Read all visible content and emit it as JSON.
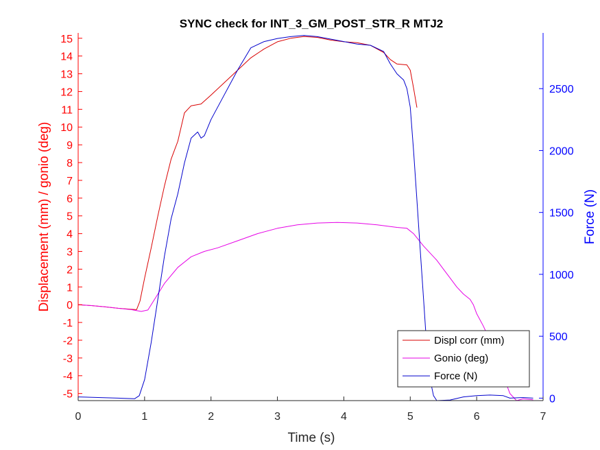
{
  "chart_data": {
    "type": "line",
    "title": "SYNC check for INT_3_GM_POST_STR_R MTJ2",
    "xlabel": "Time (s)",
    "ylabel_left": "Displacement (mm) / gonio (deg)",
    "ylabel_right": "Force (N)",
    "xlim": [
      0,
      7
    ],
    "ylim_left": [
      -5.4,
      15.3
    ],
    "ylim_right": [
      -20,
      2950
    ],
    "x_ticks": [
      0,
      1,
      2,
      3,
      4,
      5,
      6,
      7
    ],
    "y_left_ticks": [
      -5,
      -4,
      -3,
      -2,
      -1,
      0,
      1,
      2,
      3,
      4,
      5,
      6,
      7,
      8,
      9,
      10,
      11,
      12,
      13,
      14,
      15
    ],
    "y_right_ticks": [
      0,
      500,
      1000,
      1500,
      2000,
      2500
    ],
    "legend_position": "bottom-right",
    "colors": {
      "left_axis": "#ff0000",
      "right_axis": "#0000ff",
      "frame": "#262626"
    },
    "series": [
      {
        "name": "Displ corr (mm)",
        "axis": "left",
        "color": "#d90000",
        "points": [
          [
            0,
            0
          ],
          [
            0.2,
            -0.05
          ],
          [
            0.4,
            -0.12
          ],
          [
            0.6,
            -0.2
          ],
          [
            0.8,
            -0.26
          ],
          [
            0.88,
            -0.28
          ],
          [
            0.93,
            0.2
          ],
          [
            1.0,
            1.5
          ],
          [
            1.1,
            3.2
          ],
          [
            1.2,
            5.0
          ],
          [
            1.3,
            6.7
          ],
          [
            1.4,
            8.2
          ],
          [
            1.5,
            9.2
          ],
          [
            1.6,
            10.8
          ],
          [
            1.7,
            11.2
          ],
          [
            1.85,
            11.3
          ],
          [
            2.0,
            11.8
          ],
          [
            2.2,
            12.5
          ],
          [
            2.4,
            13.2
          ],
          [
            2.6,
            13.9
          ],
          [
            2.8,
            14.4
          ],
          [
            3.0,
            14.8
          ],
          [
            3.2,
            15.0
          ],
          [
            3.4,
            15.1
          ],
          [
            3.6,
            15.05
          ],
          [
            3.8,
            14.9
          ],
          [
            4.0,
            14.8
          ],
          [
            4.2,
            14.75
          ],
          [
            4.4,
            14.6
          ],
          [
            4.6,
            14.2
          ],
          [
            4.7,
            13.8
          ],
          [
            4.8,
            13.55
          ],
          [
            4.95,
            13.5
          ],
          [
            5.0,
            13.2
          ],
          [
            5.05,
            12.2
          ],
          [
            5.1,
            11.1
          ]
        ]
      },
      {
        "name": "Gonio (deg)",
        "axis": "left",
        "color": "#e600e6",
        "points": [
          [
            0,
            0
          ],
          [
            0.2,
            -0.05
          ],
          [
            0.4,
            -0.12
          ],
          [
            0.6,
            -0.2
          ],
          [
            0.8,
            -0.28
          ],
          [
            0.95,
            -0.38
          ],
          [
            1.05,
            -0.3
          ],
          [
            1.15,
            0.3
          ],
          [
            1.3,
            1.2
          ],
          [
            1.5,
            2.1
          ],
          [
            1.7,
            2.7
          ],
          [
            1.9,
            3.0
          ],
          [
            2.1,
            3.2
          ],
          [
            2.4,
            3.6
          ],
          [
            2.7,
            4.0
          ],
          [
            3.0,
            4.3
          ],
          [
            3.3,
            4.5
          ],
          [
            3.6,
            4.6
          ],
          [
            3.9,
            4.63
          ],
          [
            4.2,
            4.6
          ],
          [
            4.5,
            4.5
          ],
          [
            4.8,
            4.35
          ],
          [
            4.95,
            4.3
          ],
          [
            5.05,
            4.0
          ],
          [
            5.2,
            3.3
          ],
          [
            5.4,
            2.5
          ],
          [
            5.5,
            2.0
          ],
          [
            5.6,
            1.5
          ],
          [
            5.7,
            1.0
          ],
          [
            5.8,
            0.6
          ],
          [
            5.9,
            0.3
          ],
          [
            5.95,
            0.0
          ],
          [
            6.0,
            -0.5
          ],
          [
            6.1,
            -1.2
          ],
          [
            6.2,
            -2.0
          ],
          [
            6.35,
            -3.5
          ],
          [
            6.5,
            -5.0
          ],
          [
            6.6,
            -5.4
          ],
          [
            6.7,
            -5.3
          ],
          [
            6.85,
            -5.35
          ]
        ]
      },
      {
        "name": "Force (N)",
        "axis": "right",
        "color": "#0000cc",
        "points": [
          [
            0,
            10
          ],
          [
            0.3,
            5
          ],
          [
            0.6,
            0
          ],
          [
            0.85,
            -5
          ],
          [
            0.92,
            20
          ],
          [
            1.0,
            150
          ],
          [
            1.1,
            450
          ],
          [
            1.2,
            800
          ],
          [
            1.3,
            1150
          ],
          [
            1.4,
            1450
          ],
          [
            1.5,
            1650
          ],
          [
            1.6,
            1900
          ],
          [
            1.7,
            2100
          ],
          [
            1.8,
            2150
          ],
          [
            1.85,
            2100
          ],
          [
            1.9,
            2120
          ],
          [
            2.0,
            2250
          ],
          [
            2.2,
            2450
          ],
          [
            2.4,
            2650
          ],
          [
            2.6,
            2830
          ],
          [
            2.8,
            2880
          ],
          [
            3.0,
            2905
          ],
          [
            3.2,
            2920
          ],
          [
            3.4,
            2930
          ],
          [
            3.6,
            2920
          ],
          [
            3.8,
            2900
          ],
          [
            4.0,
            2880
          ],
          [
            4.2,
            2860
          ],
          [
            4.4,
            2850
          ],
          [
            4.6,
            2800
          ],
          [
            4.7,
            2700
          ],
          [
            4.8,
            2620
          ],
          [
            4.9,
            2570
          ],
          [
            4.95,
            2500
          ],
          [
            5.0,
            2350
          ],
          [
            5.05,
            2000
          ],
          [
            5.1,
            1600
          ],
          [
            5.15,
            1200
          ],
          [
            5.2,
            800
          ],
          [
            5.25,
            400
          ],
          [
            5.3,
            150
          ],
          [
            5.35,
            20
          ],
          [
            5.4,
            -20
          ],
          [
            5.6,
            -15
          ],
          [
            5.8,
            10
          ],
          [
            6.0,
            20
          ],
          [
            6.2,
            25
          ],
          [
            6.4,
            20
          ],
          [
            6.5,
            0
          ],
          [
            6.7,
            5
          ],
          [
            6.85,
            0
          ]
        ]
      }
    ]
  }
}
